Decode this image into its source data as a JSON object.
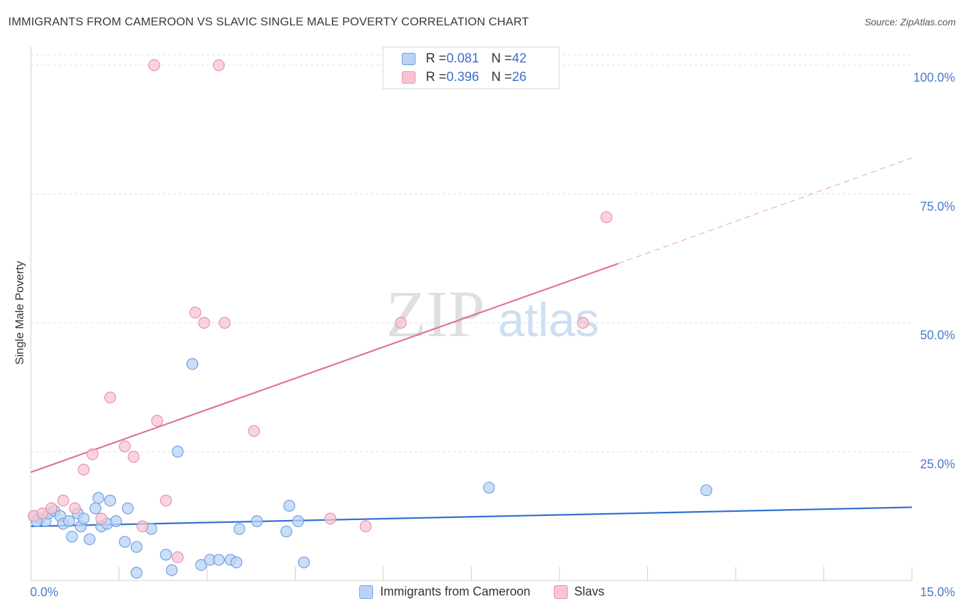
{
  "title": "IMMIGRANTS FROM CAMEROON VS SLAVIC SINGLE MALE POVERTY CORRELATION CHART",
  "source": "Source: ZipAtlas.com",
  "watermark": {
    "zip": "ZIP",
    "atlas": "atlas"
  },
  "colors": {
    "blue_fill": "#b8d3f5",
    "blue_stroke": "#6fa0de",
    "blue_line": "#2f6fd0",
    "pink_fill": "#f7c5d4",
    "pink_stroke": "#e890ab",
    "pink_line": "#e07098",
    "tick_label": "#4a7ac8",
    "grid": "#dddddd"
  },
  "stats": [
    {
      "r_label": "R = ",
      "r_value": "0.081",
      "n_label": "N = ",
      "n_value": "42",
      "series": "blue"
    },
    {
      "r_label": "R = ",
      "r_value": "0.396",
      "n_label": "N = ",
      "n_value": "26",
      "series": "pink"
    }
  ],
  "chart_data": {
    "type": "scatter",
    "title": "IMMIGRANTS FROM CAMEROON VS SLAVIC SINGLE MALE POVERTY CORRELATION CHART",
    "xlabel": "",
    "ylabel": "Single Male Poverty",
    "xlim": [
      0,
      15
    ],
    "ylim": [
      0,
      102
    ],
    "x_tick_labels": [
      "0.0%",
      "15.0%"
    ],
    "y_ticks": [
      25,
      50,
      75,
      100
    ],
    "y_tick_labels": [
      "25.0%",
      "50.0%",
      "75.0%",
      "100.0%"
    ],
    "grid": true,
    "legend_position": "bottom",
    "series": [
      {
        "name": "Immigrants from Cameroon",
        "color": "blue",
        "trend": {
          "x0": 0,
          "y0": 10.5,
          "x1": 15,
          "y1": 14.2
        },
        "points": [
          [
            0.05,
            12.5
          ],
          [
            0.15,
            12.0
          ],
          [
            0.25,
            11.5
          ],
          [
            0.3,
            13.0
          ],
          [
            0.4,
            13.5
          ],
          [
            0.5,
            12.5
          ],
          [
            0.55,
            11.0
          ],
          [
            0.65,
            11.5
          ],
          [
            0.7,
            8.5
          ],
          [
            0.8,
            13.0
          ],
          [
            0.85,
            10.5
          ],
          [
            0.9,
            12.0
          ],
          [
            1.0,
            8.0
          ],
          [
            1.1,
            14.0
          ],
          [
            1.15,
            16.0
          ],
          [
            1.2,
            10.5
          ],
          [
            1.3,
            11.0
          ],
          [
            1.35,
            15.5
          ],
          [
            1.45,
            11.5
          ],
          [
            1.6,
            7.5
          ],
          [
            1.65,
            14.0
          ],
          [
            1.8,
            6.5
          ],
          [
            2.05,
            10.0
          ],
          [
            2.3,
            5.0
          ],
          [
            2.5,
            25.0
          ],
          [
            2.75,
            42.0
          ],
          [
            2.9,
            3.0
          ],
          [
            3.05,
            4.0
          ],
          [
            3.2,
            4.0
          ],
          [
            3.4,
            4.0
          ],
          [
            3.5,
            3.5
          ],
          [
            3.55,
            10.0
          ],
          [
            3.85,
            11.5
          ],
          [
            4.35,
            9.5
          ],
          [
            4.4,
            14.5
          ],
          [
            4.55,
            11.5
          ],
          [
            4.65,
            3.5
          ],
          [
            1.8,
            1.5
          ],
          [
            2.4,
            2.0
          ],
          [
            7.8,
            18.0
          ],
          [
            11.5,
            17.5
          ],
          [
            0.1,
            11.5
          ]
        ]
      },
      {
        "name": "Slavs",
        "color": "pink",
        "trend": {
          "x0": 0,
          "y0": 21.0,
          "x1": 10.0,
          "y1": 61.5,
          "dash_x1": 15,
          "dash_y1": 82.0
        },
        "points": [
          [
            0.05,
            12.5
          ],
          [
            0.2,
            13.0
          ],
          [
            0.35,
            14.0
          ],
          [
            0.55,
            15.5
          ],
          [
            0.75,
            14.0
          ],
          [
            0.9,
            21.5
          ],
          [
            1.05,
            24.5
          ],
          [
            1.2,
            12.0
          ],
          [
            1.35,
            35.5
          ],
          [
            1.6,
            26.0
          ],
          [
            1.75,
            24.0
          ],
          [
            1.9,
            10.5
          ],
          [
            2.1,
            100.0
          ],
          [
            2.15,
            31.0
          ],
          [
            2.3,
            15.5
          ],
          [
            2.5,
            4.5
          ],
          [
            2.8,
            52.0
          ],
          [
            2.95,
            50.0
          ],
          [
            3.2,
            100.0
          ],
          [
            3.3,
            50.0
          ],
          [
            3.8,
            29.0
          ],
          [
            5.1,
            12.0
          ],
          [
            5.7,
            10.5
          ],
          [
            6.3,
            50.0
          ],
          [
            9.4,
            50.0
          ],
          [
            9.8,
            70.5
          ]
        ]
      }
    ]
  }
}
